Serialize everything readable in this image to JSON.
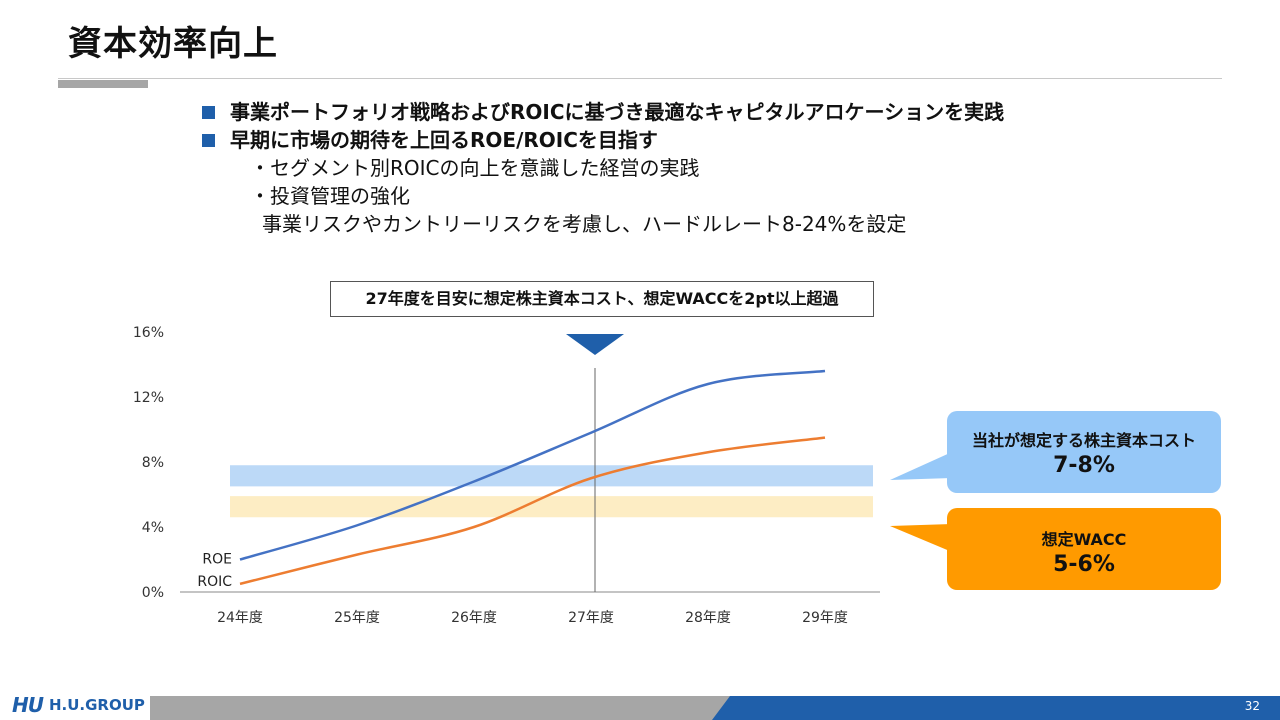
{
  "header": {
    "title": "資本効率向上"
  },
  "bullets": {
    "main1": "事業ポートフォリオ戦略およびROICに基づき最適なキャピタルアロケーションを実践",
    "main2": "早期に市場の期待を上回るROE/ROICを目指す",
    "sub1": "・セグメント別ROICの向上を意識した経営の実践",
    "sub2": "・投資管理の強化",
    "sub2_cont": "事業リスクやカントリーリスクを考慮し、ハードルレート8-24%を設定"
  },
  "callout": {
    "text": "27年度を目安に想定株主資本コスト、想定WACCを2pt以上超過"
  },
  "annotations": {
    "cost_label": "当社が想定する株主資本コスト",
    "cost_value": "7-8%",
    "wacc_label": "想定WACC",
    "wacc_value": "5-6%"
  },
  "chart_data": {
    "type": "line",
    "categories": [
      "24年度",
      "25年度",
      "26年度",
      "27年度",
      "28年度",
      "29年度"
    ],
    "series": [
      {
        "name": "ROE",
        "values": [
          2.0,
          4.1,
          6.8,
          9.8,
          12.8,
          13.6
        ],
        "color": "#4472c4"
      },
      {
        "name": "ROIC",
        "values": [
          0.5,
          2.3,
          4.0,
          7.0,
          8.6,
          9.5
        ],
        "color": "#ed7d31"
      }
    ],
    "bands": [
      {
        "label": "当社が想定する株主資本コスト",
        "from": 6.5,
        "to": 7.8,
        "color": "#bcd9f7"
      },
      {
        "label": "想定WACC",
        "from": 4.6,
        "to": 5.9,
        "color": "#fdedc4"
      }
    ],
    "marker_category": "27年度",
    "yticks": [
      "0%",
      "4%",
      "8%",
      "12%",
      "16%"
    ],
    "ylim": [
      0,
      16
    ],
    "grid": false
  },
  "footer": {
    "brand": "H.U.GROUP",
    "logo_mark": "HU",
    "page_number": "32"
  }
}
